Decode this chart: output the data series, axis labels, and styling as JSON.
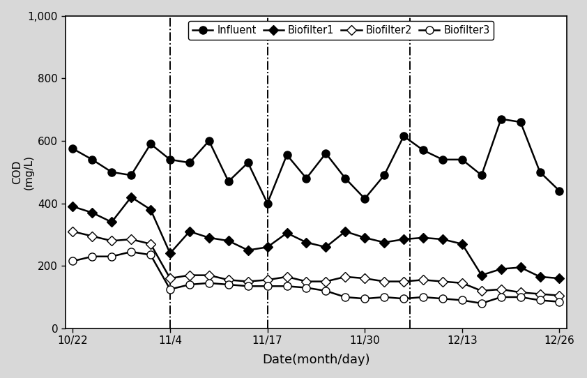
{
  "xlabel": "Date(month/day)",
  "ylim": [
    0,
    1000
  ],
  "yticks": [
    0,
    200,
    400,
    600,
    800,
    1000
  ],
  "ytick_labels": [
    "0",
    "200",
    "400",
    "600",
    "800",
    "1,000"
  ],
  "xtick_labels": [
    "10/22",
    "11/4",
    "11/17",
    "11/30",
    "12/13",
    "12/26"
  ],
  "xtick_positions": [
    0,
    13,
    26,
    39,
    52,
    65
  ],
  "vline_positions": [
    13,
    26,
    45
  ],
  "fig_bg": "#d8d8d8",
  "plot_bg": "#ffffff",
  "series": {
    "Influent": {
      "marker": "o",
      "markerfacecolor": "black",
      "markeredgecolor": "black",
      "color": "black",
      "markersize": 8,
      "linewidth": 1.8,
      "values": [
        575,
        540,
        500,
        490,
        590,
        540,
        530,
        600,
        470,
        530,
        400,
        555,
        480,
        560,
        480,
        415,
        490,
        615,
        570,
        540,
        540,
        490,
        670,
        660,
        500,
        440
      ]
    },
    "Biofilter1": {
      "marker": "D",
      "markerfacecolor": "black",
      "markeredgecolor": "black",
      "color": "black",
      "markersize": 7,
      "linewidth": 1.8,
      "values": [
        390,
        370,
        340,
        420,
        380,
        240,
        310,
        290,
        280,
        250,
        260,
        305,
        275,
        260,
        310,
        290,
        275,
        285,
        290,
        285,
        270,
        170,
        190,
        195,
        165,
        160
      ]
    },
    "Biofilter2": {
      "marker": "D",
      "markerfacecolor": "white",
      "markeredgecolor": "black",
      "color": "black",
      "markersize": 7,
      "linewidth": 1.8,
      "values": [
        310,
        295,
        280,
        285,
        270,
        160,
        170,
        170,
        155,
        150,
        155,
        165,
        150,
        150,
        165,
        160,
        150,
        150,
        155,
        150,
        145,
        120,
        125,
        115,
        110,
        105
      ]
    },
    "Biofilter3": {
      "marker": "o",
      "markerfacecolor": "white",
      "markeredgecolor": "black",
      "color": "black",
      "markersize": 8,
      "linewidth": 1.8,
      "values": [
        215,
        230,
        230,
        245,
        235,
        125,
        140,
        145,
        140,
        135,
        135,
        135,
        130,
        120,
        100,
        95,
        100,
        95,
        100,
        95,
        90,
        80,
        100,
        100,
        90,
        85
      ]
    }
  }
}
